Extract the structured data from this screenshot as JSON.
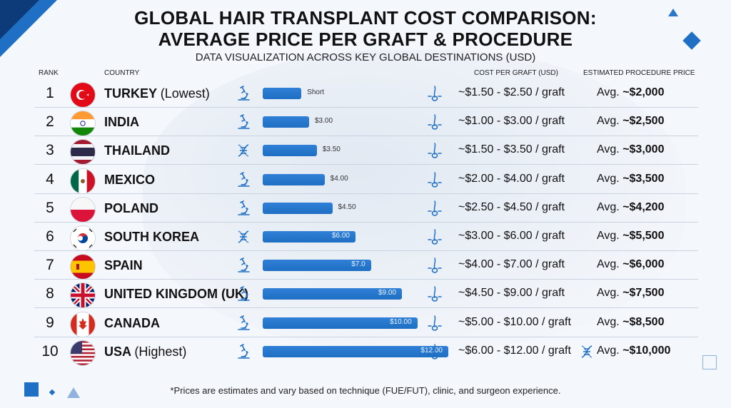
{
  "title_line1": "GLOBAL HAIR TRANSPLANT COST COMPARISON:",
  "title_line2": "AVERAGE PRICE PER GRAFT & PROCEDURE",
  "subtitle": "DATA VISUALIZATION ACROSS KEY GLOBAL DESTINATIONS (USD)",
  "headers": {
    "rank": "RANK",
    "country": "COUNTRY",
    "cost_per_graft": "COST PER GRAFT (USD)",
    "procedure_price": "ESTIMATED PROCEDURE PRICE"
  },
  "footnote": "*Prices are estimates and vary based on technique (FUE/FUT), clinic, and surgeon experience.",
  "colors": {
    "bar": "#1f6fc4",
    "accent": "#0d3b7a"
  },
  "chart_data": {
    "type": "bar",
    "orientation": "horizontal",
    "categories": [
      "TURKEY",
      "INDIA",
      "THAILAND",
      "MEXICO",
      "POLAND",
      "SOUTH KOREA",
      "SPAIN",
      "UNITED KINGDOM (UK)",
      "CANADA",
      "USA"
    ],
    "values": [
      2.5,
      3.0,
      3.5,
      4.0,
      4.5,
      6.0,
      7.0,
      9.0,
      10.0,
      12.0
    ],
    "rows": [
      {
        "rank": "1",
        "country": "TURKEY",
        "note": "(Lowest)",
        "flag": "turkey-flag",
        "icon1": "microscope-icon",
        "bar_label": "Short",
        "bar_value": 2.5,
        "range": "~$1.50 - $2.50 / graft",
        "icon3": "",
        "avg_prefix": "Avg.",
        "avg": "~$2,000"
      },
      {
        "rank": "2",
        "country": "INDIA",
        "note": "",
        "flag": "india-flag",
        "icon1": "microscope-icon",
        "bar_label": "$3.00",
        "bar_value": 3.0,
        "range": "~$1.00 - $3.00 / graft",
        "icon3": "",
        "avg_prefix": "Avg.",
        "avg": "~$2,500"
      },
      {
        "rank": "3",
        "country": "THAILAND",
        "note": "",
        "flag": "thailand-flag",
        "icon1": "dna-icon",
        "bar_label": "$3.50",
        "bar_value": 3.5,
        "range": "~$1.50 - $3.50 / graft",
        "icon3": "",
        "avg_prefix": "Avg.",
        "avg": "~$3,000"
      },
      {
        "rank": "4",
        "country": "MEXICO",
        "note": "",
        "flag": "mexico-flag",
        "icon1": "microscope-icon",
        "bar_label": "$4.00",
        "bar_value": 4.0,
        "range": "~$2.00 - $4.00 / graft",
        "icon3": "",
        "avg_prefix": "Avg.",
        "avg": "~$3,500"
      },
      {
        "rank": "5",
        "country": "POLAND",
        "note": "",
        "flag": "poland-flag",
        "icon1": "microscope-icon",
        "bar_label": "$4.50",
        "bar_value": 4.5,
        "range": "~$2.50 - $4.50 / graft",
        "icon3": "",
        "avg_prefix": "Avg.",
        "avg": "~$4,200"
      },
      {
        "rank": "6",
        "country": "SOUTH KOREA",
        "note": "",
        "flag": "south-korea-flag",
        "icon1": "dna-icon",
        "bar_label": "$6.00",
        "bar_value": 6.0,
        "range": "~$3.00 - $6.00 / graft",
        "icon3": "",
        "avg_prefix": "Avg.",
        "avg": "~$5,500"
      },
      {
        "rank": "7",
        "country": "SPAIN",
        "note": "",
        "flag": "spain-flag",
        "icon1": "microscope-icon",
        "bar_label": "$7.0",
        "bar_value": 7.0,
        "range": "~$4.00 - $7.00 / graft",
        "icon3": "",
        "avg_prefix": "Avg.",
        "avg": "~$6,000"
      },
      {
        "rank": "8",
        "country": "UNITED KINGDOM (UK)",
        "note": "",
        "flag": "uk-flag",
        "icon1": "microscope-icon",
        "bar_label": "$9.00",
        "bar_value": 9.0,
        "range": "~$4.50 - $9.00 / graft",
        "icon3": "",
        "avg_prefix": "Avg.",
        "avg": "~$7,500"
      },
      {
        "rank": "9",
        "country": "CANADA",
        "note": "",
        "flag": "canada-flag",
        "icon1": "microscope-icon",
        "bar_label": "$10.00",
        "bar_value": 10.0,
        "range": "~$5.00 - $10.00 / graft",
        "icon3": "",
        "avg_prefix": "Avg.",
        "avg": "~$8,500"
      },
      {
        "rank": "10",
        "country": "USA",
        "note": "(Highest)",
        "flag": "usa-flag",
        "icon1": "microscope-icon",
        "bar_label": "$12.00",
        "bar_value": 12.0,
        "range": "~$6.00 - $12.00 / graft",
        "icon3": "dna-icon",
        "avg_prefix": "Avg.",
        "avg": "~$10,000"
      }
    ],
    "xlim": [
      0,
      12
    ],
    "grid": false,
    "xlabel": "",
    "ylabel": "",
    "title": "GLOBAL HAIR TRANSPLANT COST COMPARISON: AVERAGE PRICE PER GRAFT & PROCEDURE"
  }
}
